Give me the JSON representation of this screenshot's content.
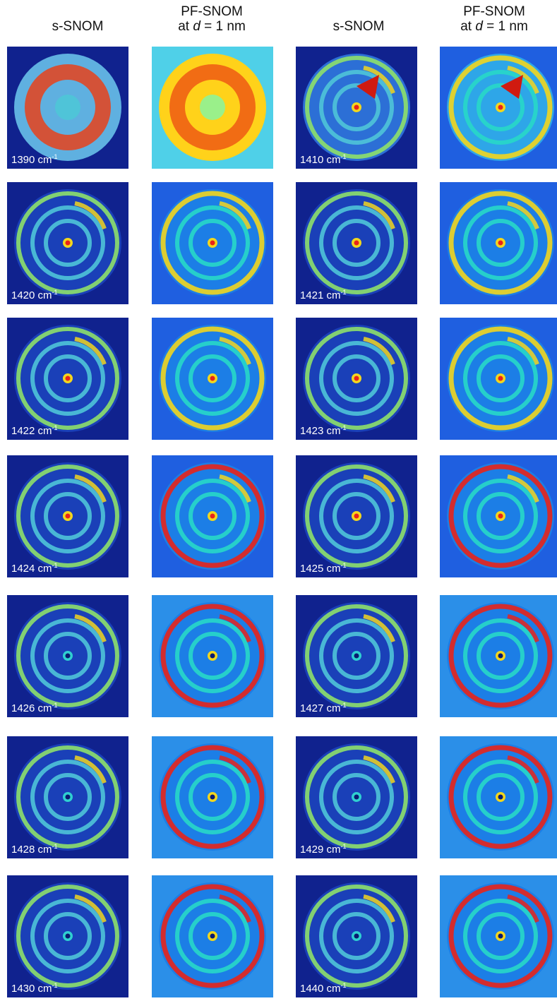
{
  "columns": [
    {
      "line1": "s-SNOM",
      "line2": ""
    },
    {
      "line1": "PF-SNOM",
      "line2": "at d = 1 nm"
    },
    {
      "line1": "s-SNOM",
      "line2": ""
    },
    {
      "line1": "PF-SNOM",
      "line2": "at d = 1 nm"
    }
  ],
  "unit": "cm",
  "unit_exp": "-1",
  "rows": [
    {
      "left": "1390",
      "right": "1410"
    },
    {
      "left": "1420",
      "right": "1421"
    },
    {
      "left": "1422",
      "right": "1423"
    },
    {
      "left": "1424",
      "right": "1425"
    },
    {
      "left": "1426",
      "right": "1427"
    },
    {
      "left": "1428",
      "right": "1429"
    },
    {
      "left": "1430",
      "right": "1440"
    }
  ],
  "colors": {
    "background": "#ffffff",
    "dark_blue": "#10228e",
    "label_text": "#ffffff"
  }
}
